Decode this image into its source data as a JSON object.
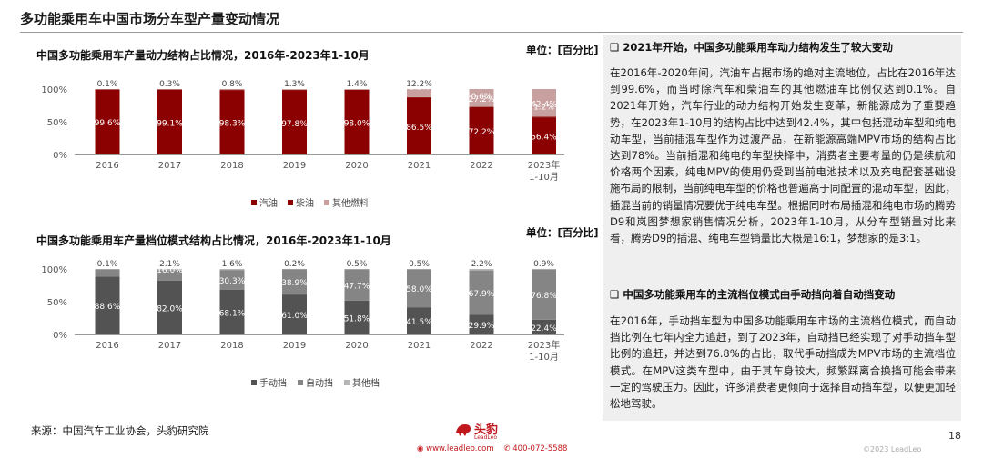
{
  "page": {
    "title": "多功能乘用车中国市场分车型产量变动情况",
    "source": "来源：中国汽车工业协会，头豹研究院",
    "page_number": "18",
    "copyright": "©2023 LeadLeo",
    "logo_cn": "头豹",
    "logo_en": "LeadLeo",
    "website": "www.leadleo.com",
    "phone": "400-072-5588"
  },
  "colors": {
    "gasoline": "#8b0000",
    "diesel": "#8b0000",
    "other_fuel": "#c8a0a0",
    "manual": "#535353",
    "auto": "#858585",
    "other_trans": "#b5b5b5",
    "brand": "#c0171d"
  },
  "chart_data": [
    {
      "type": "bar",
      "stacked": true,
      "title": "中国多功能乘用车产量动力结构占比情况，2016年-2023年1-10月",
      "unit": "单位：[百分比]",
      "categories": [
        "2016",
        "2017",
        "2018",
        "2019",
        "2020",
        "2021",
        "2022",
        "2023年\n1-10月"
      ],
      "yticks": [
        "100%",
        "50%",
        "0%"
      ],
      "ylim": [
        0,
        100
      ],
      "series": [
        {
          "name": "汽油",
          "values": [
            99.6,
            99.1,
            98.3,
            97.8,
            98.0,
            86.5,
            72.2,
            56.4
          ],
          "labels": [
            "99.6%",
            "99.1%",
            "98.3%",
            "97.8%",
            "98.0%",
            "86.5%",
            "72.2%",
            "56.4%"
          ]
        },
        {
          "name": "柴油",
          "values": [
            0.3,
            0.6,
            0.8,
            0.9,
            0.6,
            1.2,
            0.6,
            1.2
          ],
          "labels": [
            "0.3%",
            "0.6%",
            "0.8%",
            "0.9%",
            "0.6%",
            "1.2%",
            "0.6%",
            "1.2%"
          ]
        },
        {
          "name": "其他燃料",
          "values": [
            0.1,
            0.3,
            0.8,
            1.3,
            1.4,
            12.2,
            27.2,
            42.4
          ],
          "labels": [
            "0.1%",
            "0.3%",
            "0.8%",
            "1.3%",
            "1.4%",
            "12.2%",
            "27.2%",
            "42.4%"
          ]
        }
      ],
      "legend": "bottom"
    },
    {
      "type": "bar",
      "stacked": true,
      "title": "中国多功能乘用车产量档位模式结构占比情况，2016年-2023年1-10月",
      "unit": "单位：[百分比]",
      "categories": [
        "2016",
        "2017",
        "2018",
        "2019",
        "2020",
        "2021",
        "2022",
        "2023年\n1-10月"
      ],
      "yticks": [
        "100%",
        "50%",
        "0%"
      ],
      "ylim": [
        0,
        100
      ],
      "series": [
        {
          "name": "手动挡",
          "values": [
            88.6,
            82.0,
            68.1,
            61.0,
            51.8,
            41.5,
            29.9,
            22.4
          ],
          "labels": [
            "88.6%",
            "82.0%",
            "68.1%",
            "61.0%",
            "51.8%",
            "41.5%",
            "29.9%",
            "22.4%"
          ]
        },
        {
          "name": "自动挡",
          "values": [
            11.3,
            16.0,
            30.3,
            38.9,
            47.7,
            58.0,
            67.9,
            76.8
          ],
          "labels": [
            "11.3%",
            "16.0%",
            "30.3%",
            "38.9%",
            "47.7%",
            "58.0%",
            "67.9%",
            "76.8%"
          ]
        },
        {
          "name": "其他档",
          "values": [
            0.1,
            2.1,
            1.6,
            0.2,
            0.5,
            0.5,
            2.2,
            0.9
          ],
          "labels": [
            "0.1%",
            "2.1%",
            "1.6%",
            "0.2%",
            "0.5%",
            "0.5%",
            "2.2%",
            "0.9%"
          ]
        }
      ],
      "legend": "bottom"
    }
  ],
  "panel": {
    "head1": "❑  2021年开始，中国多功能乘用车动力结构发生了较大变动",
    "para1": "在2016年-2020年间，汽油车占据市场的绝对主流地位，占比在2016年达到99.6%，而当时除汽车和柴油车的其他燃油车比例仅达到0.1%。自2021年开始，汽车行业的动力结构开始发生变革，新能源成为了重要趋势，在2023年1-10月的结构占比中达到42.4%，其中包括混动车型和纯电动车型，当前插混车型作为过渡产品，在新能源高端MPV市场的结构占比达到78%。当前插混和纯电的车型抉择中，消费者主要考量的仍是续航和价格两个因素，纯电MPV的使用仍受到当前电池技术以及充电配套基础设施布局的限制，当前纯电车型的价格也普遍高于同配置的混动车型，因此，插混当前的销量情况要优于纯电车型。根据同时布局插混和纯电市场的腾势D9和岚图梦想家销售情况分析，2023年1-10月，从分车型销量对比来看，腾势D9的插混、纯电车型销量比大概是16:1，梦想家的是3:1。",
    "head2": "❑  中国多功能乘用车的主流档位模式由手动挡向着自动挡变动",
    "para2": "在2016年，手动挡车型为中国多功能乘用车市场的主流档位模式，而自动挡比例在七年内全力追赶，到了2023年，自动挡已经实现了对手动挡车型比例的追赶，并达到76.8%的占比，取代手动挡成为MPV市场的主流档位模式。在MPV这类车型中，由于其车身较大，频繁踩离合换挡可能会带来一定的驾驶压力。因此，许多消费者更倾向于选择自动挡车型，以便更加轻松地驾驶。"
  }
}
